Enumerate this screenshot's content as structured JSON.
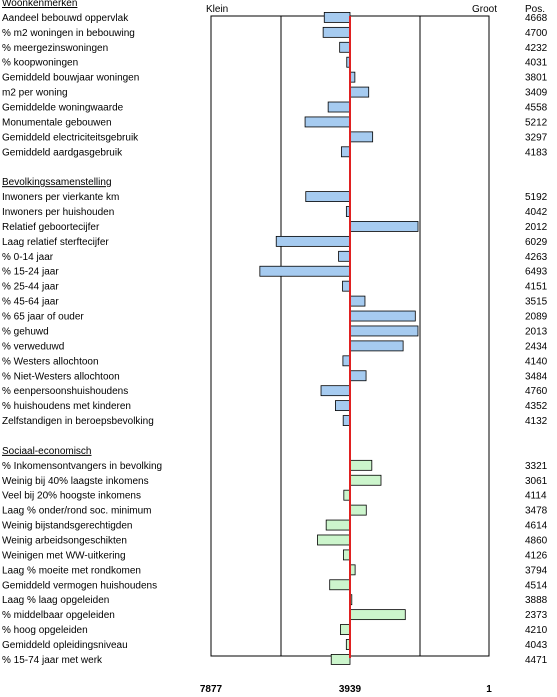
{
  "chart_data": {
    "type": "bar",
    "orientation": "horizontal",
    "header": {
      "left": "Klein",
      "right": "Groot",
      "pos": "Pos."
    },
    "x_ticks": [
      "7877",
      "3939",
      "1"
    ],
    "xlim": [
      7877,
      1
    ],
    "reference_line": 3939,
    "colors": {
      "blue": "#a6cbf0",
      "green": "#ccf5cc",
      "reference": "#e02020"
    },
    "sections": [
      {
        "title": "Woonkenmerken",
        "color": "#a6cbf0",
        "items": [
          {
            "label": "Aandeel bebouwd oppervlak",
            "pos": 4668
          },
          {
            "label": "% m2 woningen in bebouwing",
            "pos": 4700
          },
          {
            "label": "% meergezinswoningen",
            "pos": 4232
          },
          {
            "label": "% koopwoningen",
            "pos": 4031
          },
          {
            "label": "Gemiddeld bouwjaar woningen",
            "pos": 3801
          },
          {
            "label": "m2 per woning",
            "pos": 3409
          },
          {
            "label": "Gemiddelde woningwaarde",
            "pos": 4558
          },
          {
            "label": "Monumentale gebouwen",
            "pos": 5212
          },
          {
            "label": "Gemiddeld electriciteitsgebruik",
            "pos": 3297
          },
          {
            "label": "Gemiddeld aardgasgebruik",
            "pos": 4183
          }
        ]
      },
      {
        "title": "Bevolkingssamenstelling",
        "color": "#a6cbf0",
        "items": [
          {
            "label": "Inwoners per vierkante km",
            "pos": 5192
          },
          {
            "label": "Inwoners per huishouden",
            "pos": 4042
          },
          {
            "label": "Relatief geboortecijfer",
            "pos": 2012
          },
          {
            "label": "Laag relatief sterftecijfer",
            "pos": 6029
          },
          {
            "label": "% 0-14 jaar",
            "pos": 4263
          },
          {
            "label": "% 15-24 jaar",
            "pos": 6493
          },
          {
            "label": "% 25-44 jaar",
            "pos": 4151
          },
          {
            "label": "% 45-64 jaar",
            "pos": 3515
          },
          {
            "label": "% 65 jaar of ouder",
            "pos": 2089
          },
          {
            "label": "% gehuwd",
            "pos": 2013
          },
          {
            "label": "% verweduwd",
            "pos": 2434
          },
          {
            "label": "% Westers allochtoon",
            "pos": 4140
          },
          {
            "label": "% Niet-Westers allochtoon",
            "pos": 3484
          },
          {
            "label": "% eenpersoonshuishoudens",
            "pos": 4760
          },
          {
            "label": "% huishoudens met kinderen",
            "pos": 4352
          },
          {
            "label": "Zelfstandigen in beroepsbevolking",
            "pos": 4132
          }
        ]
      },
      {
        "title": "Sociaal-economisch",
        "color": "#ccf5cc",
        "items": [
          {
            "label": "% Inkomensontvangers in bevolking",
            "pos": 3321
          },
          {
            "label": "Weinig bij 40% laagste inkomens",
            "pos": 3061
          },
          {
            "label": "Veel bij 20% hoogste inkomens",
            "pos": 4114
          },
          {
            "label": "Laag % onder/rond soc. minimum",
            "pos": 3478
          },
          {
            "label": "Weinig bijstandsgerechtigden",
            "pos": 4614
          },
          {
            "label": "Weinig arbeidsongeschikten",
            "pos": 4860
          },
          {
            "label": "Weinigen met WW-uitkering",
            "pos": 4126
          },
          {
            "label": "Laag % moeite met rondkomen",
            "pos": 3794
          },
          {
            "label": "Gemiddeld vermogen huishoudens",
            "pos": 4514
          },
          {
            "label": "Laag % laag opgeleiden",
            "pos": 3888
          },
          {
            "label": "% middelbaar opgeleiden",
            "pos": 2373
          },
          {
            "label": "% hoog opgeleiden",
            "pos": 4210
          },
          {
            "label": "Gemiddeld opleidingsniveau",
            "pos": 4043
          },
          {
            "label": "% 15-74 jaar met werk",
            "pos": 4471
          }
        ]
      }
    ]
  }
}
